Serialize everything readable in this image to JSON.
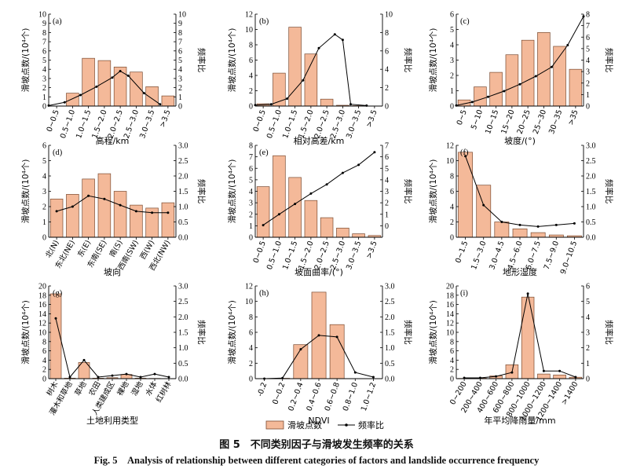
{
  "caption": {
    "cn": "图 5　不同类别因子与滑坡发生频率的关系",
    "en": "Fig. 5　Analysis of relationship between different categories of factors and landslide occurrence frequency"
  },
  "legend": {
    "bar": "滑坡点数",
    "line": "频率比"
  },
  "colors": {
    "bar_fill": "#f4b999",
    "bar_stroke": "#7a4a30",
    "line": "#000000",
    "axis": "#000000"
  },
  "chart_data": [
    {
      "id": "a",
      "type": "bar+line",
      "panel_label": "(a)",
      "xlabel": "高程/km",
      "ylabel": "滑坡点数/(10⁴个)",
      "y2label": "频率比",
      "ylim": [
        0,
        10
      ],
      "yticks": [
        0,
        1,
        2,
        3,
        4,
        5,
        6,
        7,
        8,
        9,
        10
      ],
      "y2lim": [
        0,
        10
      ],
      "y2ticks": [
        0,
        1,
        2,
        3,
        4,
        5,
        6,
        7,
        8,
        9,
        10
      ],
      "categories": [
        "0~0.5",
        "0.5~1.0",
        "1.0~1.5",
        "1.5~2.0",
        "2.0~2.5",
        "2.5~3.0",
        "3.0~3.5",
        ">3.5"
      ],
      "bars": [
        0,
        1.4,
        5.2,
        4.95,
        4.25,
        3.7,
        2.1,
        1.1
      ],
      "ratio": [
        0.05,
        0.4,
        1.2,
        2.1,
        3.1,
        3.8,
        3.3,
        1.4,
        0.2
      ],
      "ratio_x": [
        -0.5,
        0.5,
        1.5,
        2.5,
        3.5,
        4,
        4.5,
        5.5,
        6.5
      ],
      "label_rotate": -70
    },
    {
      "id": "b",
      "type": "bar+line",
      "panel_label": "(b)",
      "xlabel": "相对高差/km",
      "ylabel": "滑坡点数/(10⁴个)",
      "y2label": "频率比",
      "ylim": [
        0,
        12
      ],
      "yticks": [
        0,
        2,
        4,
        6,
        8,
        10,
        12
      ],
      "y2lim": [
        0,
        10
      ],
      "y2ticks": [
        0,
        2,
        4,
        6,
        8,
        10
      ],
      "categories": [
        "0~0.5",
        "0.5~1.0",
        "1.0~1.5",
        "1.5~2.0",
        "2.0~2.5",
        "2.5~3.0",
        "3.0~3.5",
        ">3.5"
      ],
      "bars": [
        0.3,
        4.3,
        10.3,
        6.8,
        0.9,
        0.1,
        0.05,
        0
      ],
      "ratio": [
        0.1,
        0.2,
        0.8,
        2.8,
        6.3,
        7.8,
        7.2,
        0.2,
        0.05
      ],
      "ratio_x": [
        -0.5,
        0.5,
        1.5,
        2.5,
        3.5,
        4.5,
        5,
        5.5,
        6.5
      ],
      "label_rotate": -70
    },
    {
      "id": "c",
      "type": "bar+line",
      "panel_label": "(c)",
      "xlabel": "坡度/(°)",
      "ylabel": "滑坡点数/(10⁴个)",
      "y2label": "频率比",
      "ylim": [
        0,
        6
      ],
      "yticks": [
        0,
        1,
        2,
        3,
        4,
        5,
        6
      ],
      "y2lim": [
        0,
        8
      ],
      "y2ticks": [
        0,
        1,
        2,
        3,
        4,
        5,
        6,
        7,
        8
      ],
      "categories": [
        "0~5",
        "5~10",
        "10~15",
        "15~20",
        "20~25",
        "25~30",
        "30~35",
        ">35"
      ],
      "bars": [
        0.4,
        1.25,
        2.2,
        3.35,
        4.3,
        4.8,
        3.9,
        2.4
      ],
      "ratio": [
        0.05,
        0.35,
        0.8,
        1.3,
        1.9,
        2.6,
        3.4,
        5.3,
        7.8
      ],
      "ratio_x": [
        -0.5,
        0.5,
        1.5,
        2.5,
        3.5,
        4.5,
        5.5,
        6.5,
        7.5
      ],
      "label_rotate": -70
    },
    {
      "id": "d",
      "type": "bar+line",
      "panel_label": "(d)",
      "xlabel": "坡向",
      "ylabel": "滑坡点数/(10⁴个)",
      "y2label": "频率比",
      "ylim": [
        0,
        6
      ],
      "yticks": [
        0,
        1,
        2,
        3,
        4,
        5,
        6
      ],
      "y2lim": [
        0,
        3.0
      ],
      "y2ticks": [
        0,
        0.5,
        1.0,
        1.5,
        2.0,
        2.5,
        3.0
      ],
      "categories": [
        "北(N)",
        "东北(NE)",
        "东(E)",
        "东南(SE)",
        "南(S)",
        "西南(SW)",
        "西(W)",
        "西北(NW)"
      ],
      "bars": [
        2.5,
        2.8,
        3.8,
        4.15,
        3.0,
        2.1,
        1.9,
        2.25
      ],
      "ratio": [
        0.85,
        1.0,
        1.35,
        1.25,
        1.05,
        0.85,
        0.8,
        0.8
      ],
      "ratio_x": [
        0,
        1,
        2,
        3,
        4,
        5,
        6,
        7
      ],
      "label_rotate": -60
    },
    {
      "id": "e",
      "type": "bar+line",
      "panel_label": "(e)",
      "xlabel": "坡面曲率/(°)",
      "ylabel": "滑坡点数/(10⁴个)",
      "y2label": "频率比",
      "ylim": [
        0,
        8
      ],
      "yticks": [
        0,
        1,
        2,
        3,
        4,
        5,
        6,
        7,
        8
      ],
      "y2lim": [
        -1,
        7
      ],
      "y2ticks": [
        0,
        1,
        2,
        3,
        4,
        5,
        6,
        7
      ],
      "categories": [
        "0~0.5",
        "0.5~1.0",
        "1.0~1.5",
        "1.5~2.0",
        "2.0~2.5",
        "2.5~3.0",
        "3.0~3.5",
        ">3.5"
      ],
      "bars": [
        4.4,
        7.1,
        5.2,
        3.2,
        1.7,
        0.8,
        0.3,
        0.15
      ],
      "ratio": [
        0.05,
        1.0,
        1.9,
        2.8,
        3.6,
        4.6,
        5.3,
        6.4
      ],
      "ratio_x": [
        0,
        1,
        2,
        3,
        4,
        5,
        6,
        7
      ],
      "label_rotate": -70
    },
    {
      "id": "f",
      "type": "bar+line",
      "panel_label": "(f)",
      "xlabel": "地形湿度",
      "ylabel": "滑坡点数/(10⁴个)",
      "y2label": "频率比",
      "ylim": [
        0,
        12
      ],
      "yticks": [
        0,
        2,
        4,
        6,
        8,
        10,
        12
      ],
      "y2lim": [
        0,
        3.0
      ],
      "y2ticks": [
        0,
        0.5,
        1.0,
        1.5,
        2.0,
        2.5,
        3.0
      ],
      "categories": [
        "0~1.5",
        "1.5~3.0",
        "3.0~4.5",
        "4.5~6.0",
        "6.0~7.5",
        "7.5~9.0",
        "9.0~10.5"
      ],
      "bars": [
        11.1,
        6.8,
        2.0,
        1.1,
        0.6,
        0.3,
        0.2
      ],
      "ratio": [
        2.65,
        1.05,
        0.5,
        0.4,
        0.35,
        0.4,
        0.45
      ],
      "ratio_x": [
        0,
        1,
        2,
        3,
        4,
        5,
        6
      ],
      "label_rotate": -70
    },
    {
      "id": "g",
      "type": "bar+line",
      "panel_label": "(g)",
      "xlabel": "土地利用类型",
      "ylabel": "滑坡点数/(10⁴个)",
      "y2label": "频率比",
      "ylim": [
        0,
        20
      ],
      "yticks": [
        0,
        2,
        4,
        6,
        8,
        10,
        12,
        14,
        16,
        18,
        20
      ],
      "y2lim": [
        0,
        3.0
      ],
      "y2ticks": [
        0,
        0.5,
        1.0,
        1.5,
        2.0,
        2.5,
        3.0
      ],
      "categories": [
        "树木",
        "灌木和草地",
        "草地",
        "农田",
        "人类建成区",
        "裸地",
        "湿地",
        "水体",
        "红树林"
      ],
      "bars": [
        18.3,
        0.1,
        3.5,
        0.1,
        0.2,
        0.9,
        0.1,
        0.05,
        0
      ],
      "ratio": [
        1.95,
        0.05,
        0.6,
        0.05,
        0.1,
        0.15,
        0.05,
        0.15,
        0.05
      ],
      "ratio_x": [
        0,
        1,
        2,
        3,
        4,
        5,
        6,
        7,
        8
      ],
      "label_rotate": -60
    },
    {
      "id": "h",
      "type": "bar+line",
      "panel_label": "(h)",
      "xlabel": "NDVI",
      "ylabel": "滑坡点数/(10⁴个)",
      "y2label": "频率比",
      "ylim": [
        0,
        12
      ],
      "yticks": [
        0,
        2,
        4,
        6,
        8,
        10,
        12
      ],
      "y2lim": [
        0,
        3.0
      ],
      "y2ticks": [
        0,
        0.5,
        1.0,
        1.5,
        2.0,
        2.5,
        3.0
      ],
      "categories": [
        "-0.2",
        "0~0.2",
        "0.2~0.4",
        "0.4~0.6",
        "0.6~0.8",
        "0.8~1.0",
        "1.0~1.2"
      ],
      "bars": [
        0,
        0.05,
        4.4,
        11.2,
        7.0,
        0,
        0
      ],
      "ratio": [
        0,
        0.02,
        0.95,
        1.4,
        1.35,
        0.2,
        0.05
      ],
      "ratio_x": [
        0,
        1,
        2,
        3,
        4,
        5,
        6
      ],
      "label_rotate": -70
    },
    {
      "id": "i",
      "type": "bar+line",
      "panel_label": "(i)",
      "xlabel": "年平均降雨量/mm",
      "ylabel": "滑坡点数/(10⁴个)",
      "y2label": "频率比",
      "ylim": [
        0,
        20
      ],
      "yticks": [
        0,
        2,
        4,
        6,
        8,
        10,
        12,
        14,
        16,
        18,
        20
      ],
      "y2lim": [
        0,
        6
      ],
      "y2ticks": [
        0,
        1,
        2,
        3,
        4,
        5,
        6
      ],
      "categories": [
        "0~200",
        "200~400",
        "400~600",
        "600~800",
        "800~1000",
        "1000~1200",
        "1200~1400",
        ">1400"
      ],
      "bars": [
        0.05,
        0.1,
        0.6,
        3.0,
        17.6,
        1.0,
        0.8,
        0.3
      ],
      "ratio": [
        0.05,
        0.05,
        0.15,
        0.4,
        5.5,
        0.5,
        0.5,
        0.1
      ],
      "ratio_x": [
        0,
        1,
        2,
        3,
        4,
        5,
        6,
        7
      ],
      "label_rotate": -60
    }
  ]
}
